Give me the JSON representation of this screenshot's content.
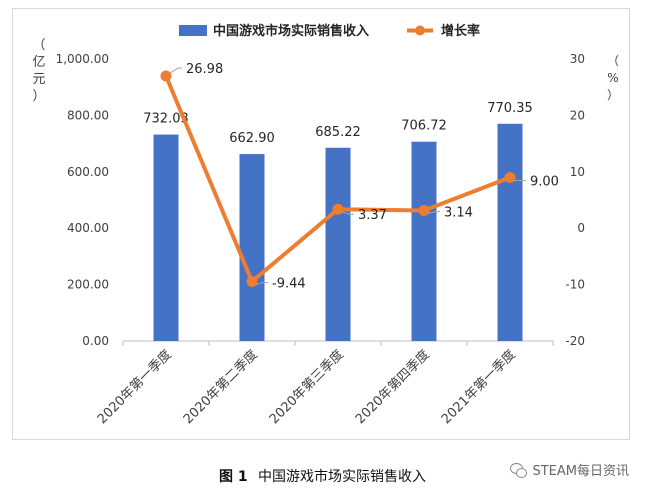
{
  "caption": {
    "fig_no": "图 1",
    "title": "中国游戏市场实际销售收入"
  },
  "watermark": {
    "text": "STEAM每日资讯",
    "icon": "wechat-icon"
  },
  "chart_data": {
    "type": "bar",
    "categories": [
      "2020年第一季度",
      "2020年第二季度",
      "2020年第三季度",
      "2020年第四季度",
      "2021年第一季度"
    ],
    "series": [
      {
        "name": "中国游戏市场实际销售收入",
        "type": "bar",
        "axis": "left",
        "values": [
          732.03,
          662.9,
          685.22,
          706.72,
          770.35
        ],
        "labels": [
          "732.03",
          "662.90",
          "685.22",
          "706.72",
          "770.35"
        ]
      },
      {
        "name": "增长率",
        "type": "line",
        "axis": "right",
        "values": [
          26.98,
          -9.44,
          3.37,
          3.14,
          9.0
        ],
        "labels": [
          "26.98",
          "-9.44",
          "3.37",
          "3.14",
          "9.00"
        ]
      }
    ],
    "y_left": {
      "label": "（亿元）",
      "ylim": [
        0,
        1000
      ],
      "ticks": [
        "0.00",
        "200.00",
        "400.00",
        "600.00",
        "800.00",
        "1,000.00"
      ],
      "tick_values": [
        0,
        200,
        400,
        600,
        800,
        1000
      ]
    },
    "y_right": {
      "label": "（%）",
      "ylim": [
        -20,
        30
      ],
      "ticks": [
        "-20",
        "-10",
        "0",
        "10",
        "20",
        "30"
      ],
      "tick_values": [
        -20,
        -10,
        0,
        10,
        20,
        30
      ]
    },
    "legend": {
      "position": "top"
    },
    "grid": false,
    "colors": {
      "bar": "#4472c4",
      "line": "#ed7d31",
      "axis": "#bfbfbf",
      "text": "#404040"
    }
  }
}
